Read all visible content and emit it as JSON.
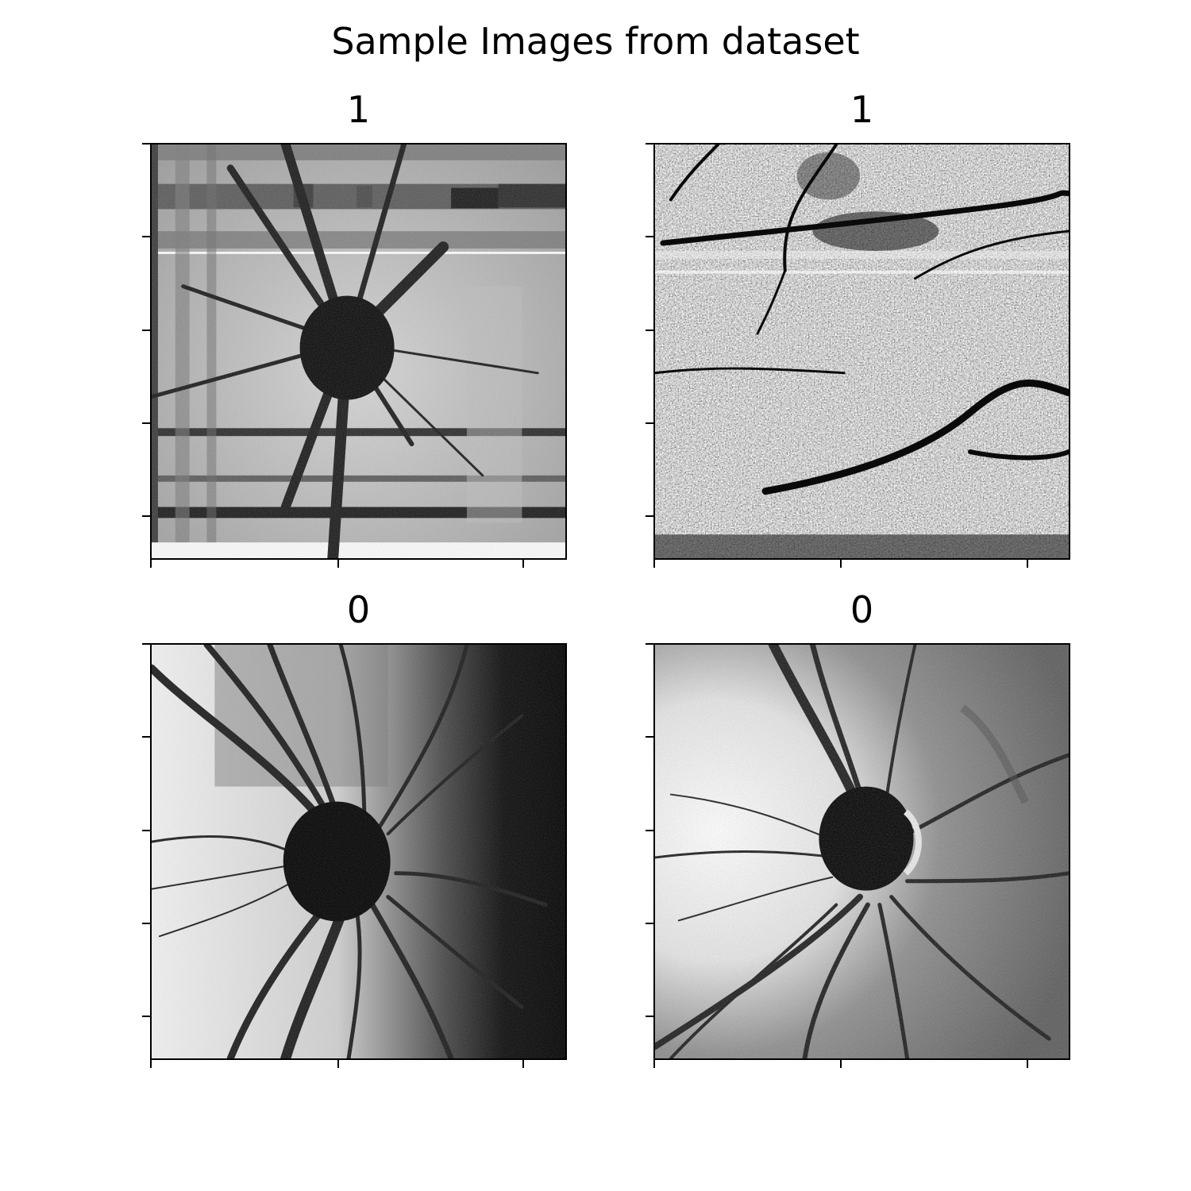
{
  "figure": {
    "title": "Sample Images from dataset"
  },
  "panels": [
    {
      "label": "1",
      "style": "oct-striped",
      "tone": "gray"
    },
    {
      "label": "1",
      "style": "noisy-speckle",
      "tone": "light"
    },
    {
      "label": "0",
      "style": "fundus-dark-right",
      "tone": "gray"
    },
    {
      "label": "0",
      "style": "fundus-bright-left",
      "tone": "gray"
    }
  ]
}
